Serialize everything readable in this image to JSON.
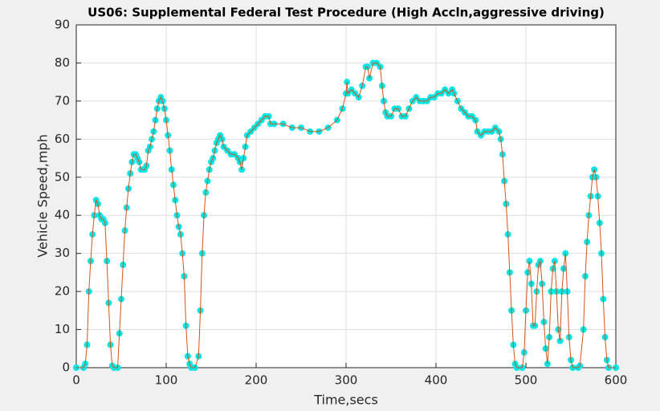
{
  "chart_data": {
    "type": "line",
    "title": "US06: Supplemental Federal Test Procedure (High Accln,aggressive driving)",
    "xlabel": "Time,secs",
    "ylabel": "Vehicle Speed,mph",
    "x": [
      0,
      8,
      10,
      12,
      14,
      16,
      18,
      20,
      22,
      24,
      26,
      28,
      30,
      32,
      34,
      36,
      38,
      40,
      42,
      46,
      48,
      50,
      52,
      54,
      56,
      58,
      60,
      62,
      64,
      66,
      68,
      70,
      72,
      74,
      76,
      78,
      80,
      82,
      84,
      86,
      88,
      90,
      92,
      94,
      96,
      98,
      100,
      102,
      104,
      106,
      108,
      110,
      112,
      114,
      116,
      118,
      120,
      122,
      124,
      126,
      128,
      132,
      136,
      138,
      140,
      142,
      144,
      146,
      148,
      150,
      152,
      154,
      156,
      158,
      160,
      162,
      164,
      168,
      172,
      176,
      180,
      182,
      184,
      186,
      188,
      190,
      194,
      198,
      202,
      206,
      210,
      214,
      216,
      220,
      230,
      240,
      250,
      260,
      270,
      280,
      290,
      296,
      300,
      301,
      302,
      306,
      310,
      314,
      318,
      322,
      324,
      326,
      330,
      334,
      338,
      340,
      342,
      344,
      346,
      350,
      354,
      358,
      362,
      366,
      370,
      374,
      378,
      382,
      386,
      390,
      394,
      398,
      402,
      406,
      410,
      414,
      418,
      420,
      424,
      428,
      432,
      436,
      440,
      444,
      446,
      450,
      454,
      458,
      462,
      466,
      470,
      472,
      474,
      476,
      478,
      480,
      482,
      484,
      486,
      488,
      490,
      496,
      498,
      500,
      502,
      504,
      506,
      508,
      510,
      512,
      514,
      516,
      518,
      520,
      522,
      524,
      526,
      528,
      530,
      532,
      534,
      536,
      538,
      540,
      542,
      544,
      546,
      548,
      550,
      552,
      558,
      560,
      564,
      566,
      568,
      570,
      572,
      574,
      576,
      578,
      580,
      582,
      584,
      586,
      588,
      590,
      592,
      600
    ],
    "values": [
      0,
      0,
      1,
      6,
      20,
      28,
      35,
      40,
      44,
      43,
      40,
      39,
      39,
      38,
      28,
      17,
      6,
      0.5,
      0,
      0,
      9,
      18,
      27,
      36,
      42,
      47,
      51,
      54,
      56,
      56,
      55,
      54,
      52,
      52,
      52,
      53,
      57,
      58,
      60,
      62,
      65,
      68,
      70,
      71,
      70,
      68,
      65,
      61,
      57,
      52,
      48,
      44,
      40,
      37,
      35,
      30,
      24,
      11,
      3,
      1,
      0,
      0,
      3,
      15,
      30,
      40,
      46,
      49,
      52,
      54,
      55,
      57,
      59,
      60,
      61,
      60,
      58,
      57,
      56,
      56,
      55,
      54,
      52,
      55,
      58,
      61,
      62,
      63,
      64,
      65,
      66,
      66,
      64,
      64,
      64,
      63,
      63,
      62,
      62,
      63,
      65,
      68,
      72,
      75,
      72,
      73,
      72,
      71,
      74,
      79,
      79,
      76,
      80,
      80,
      79,
      74,
      70,
      67,
      66,
      66,
      68,
      68,
      66,
      66,
      68,
      70,
      71,
      70,
      70,
      70,
      71,
      71,
      72,
      72,
      73,
      72,
      73,
      72,
      70,
      68,
      67,
      66,
      66,
      65,
      62,
      61,
      62,
      62,
      62,
      63,
      62,
      60,
      56,
      49,
      43,
      35,
      25,
      15,
      6,
      1,
      0,
      0,
      4,
      15,
      25,
      28,
      22,
      11,
      11,
      20,
      27,
      28,
      22,
      12,
      5,
      1,
      8,
      20,
      26,
      28,
      20,
      10,
      7,
      20,
      26,
      30,
      20,
      8,
      2,
      0,
      0,
      0.5,
      10,
      24,
      33,
      40,
      45,
      50,
      52,
      50,
      45,
      38,
      30,
      18,
      8,
      2,
      0,
      0
    ],
    "line_color": "#d95319",
    "marker_color": "#00e5e5",
    "xlim": [
      0,
      600
    ],
    "xticks": [
      0,
      100,
      200,
      300,
      400,
      500,
      600
    ],
    "ylim": [
      0,
      90
    ],
    "yticks": [
      0,
      10,
      20,
      30,
      40,
      50,
      60,
      70,
      80,
      90
    ],
    "grid": true
  }
}
